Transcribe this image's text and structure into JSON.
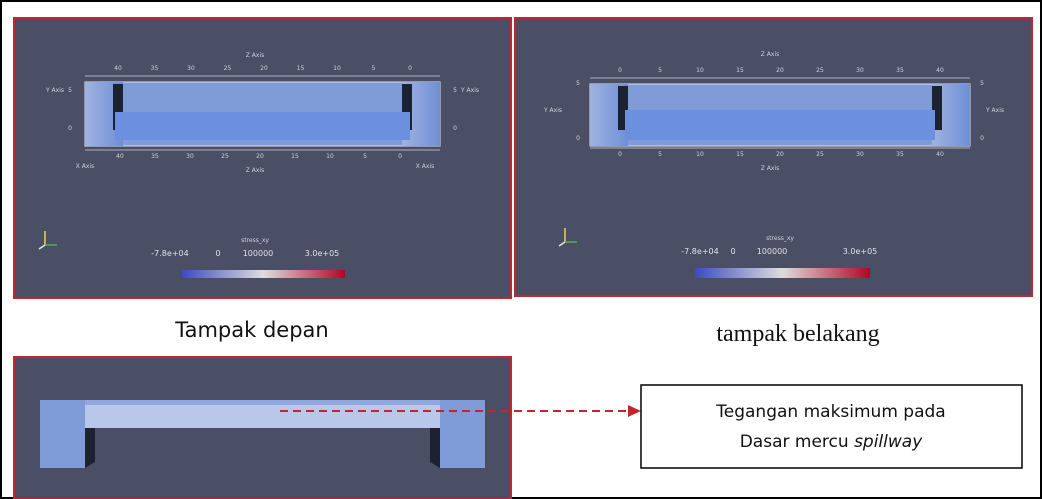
{
  "panels": [
    {
      "caption": "Tampak depan",
      "axis_labels": {
        "top": "Z Axis",
        "left": "Y Axis",
        "right": "Y Axis",
        "bottom_left": "X Axis",
        "bottom": "Z Axis",
        "bottom_right": "X Axis"
      },
      "top_ticks": [
        40,
        35,
        30,
        25,
        20,
        15,
        10,
        5,
        0
      ],
      "bottom_ticks": [
        40,
        35,
        30,
        25,
        20,
        15,
        10,
        5,
        0
      ],
      "left_ticks": [
        5,
        0
      ],
      "right_ticks": [
        5,
        0
      ],
      "colorbar": {
        "title": "stress_xy",
        "labels": [
          "-7.8e+04",
          "0",
          "100000",
          "3.0e+05"
        ]
      }
    },
    {
      "caption": "tampak belakang",
      "axis_labels": {
        "top": "Z Axis",
        "left": "Y Axis",
        "right": "Y Axis",
        "bottom": "Z Axis"
      },
      "top_ticks": [
        0,
        5,
        10,
        15,
        20,
        25,
        30,
        35,
        40
      ],
      "bottom_ticks": [
        0,
        5,
        10,
        15,
        20,
        25,
        30,
        35,
        40
      ],
      "left_ticks": [
        5,
        0
      ],
      "right_ticks": [
        5,
        0
      ],
      "colorbar": {
        "title": "stress_xy",
        "labels": [
          "-7.8e+04",
          "0",
          "100000",
          "3.0e+05"
        ]
      }
    }
  ],
  "callout": {
    "line1": "Tegangan maksimum pada",
    "line2": "Dasar mercu ",
    "line2_italic": "spillway"
  }
}
